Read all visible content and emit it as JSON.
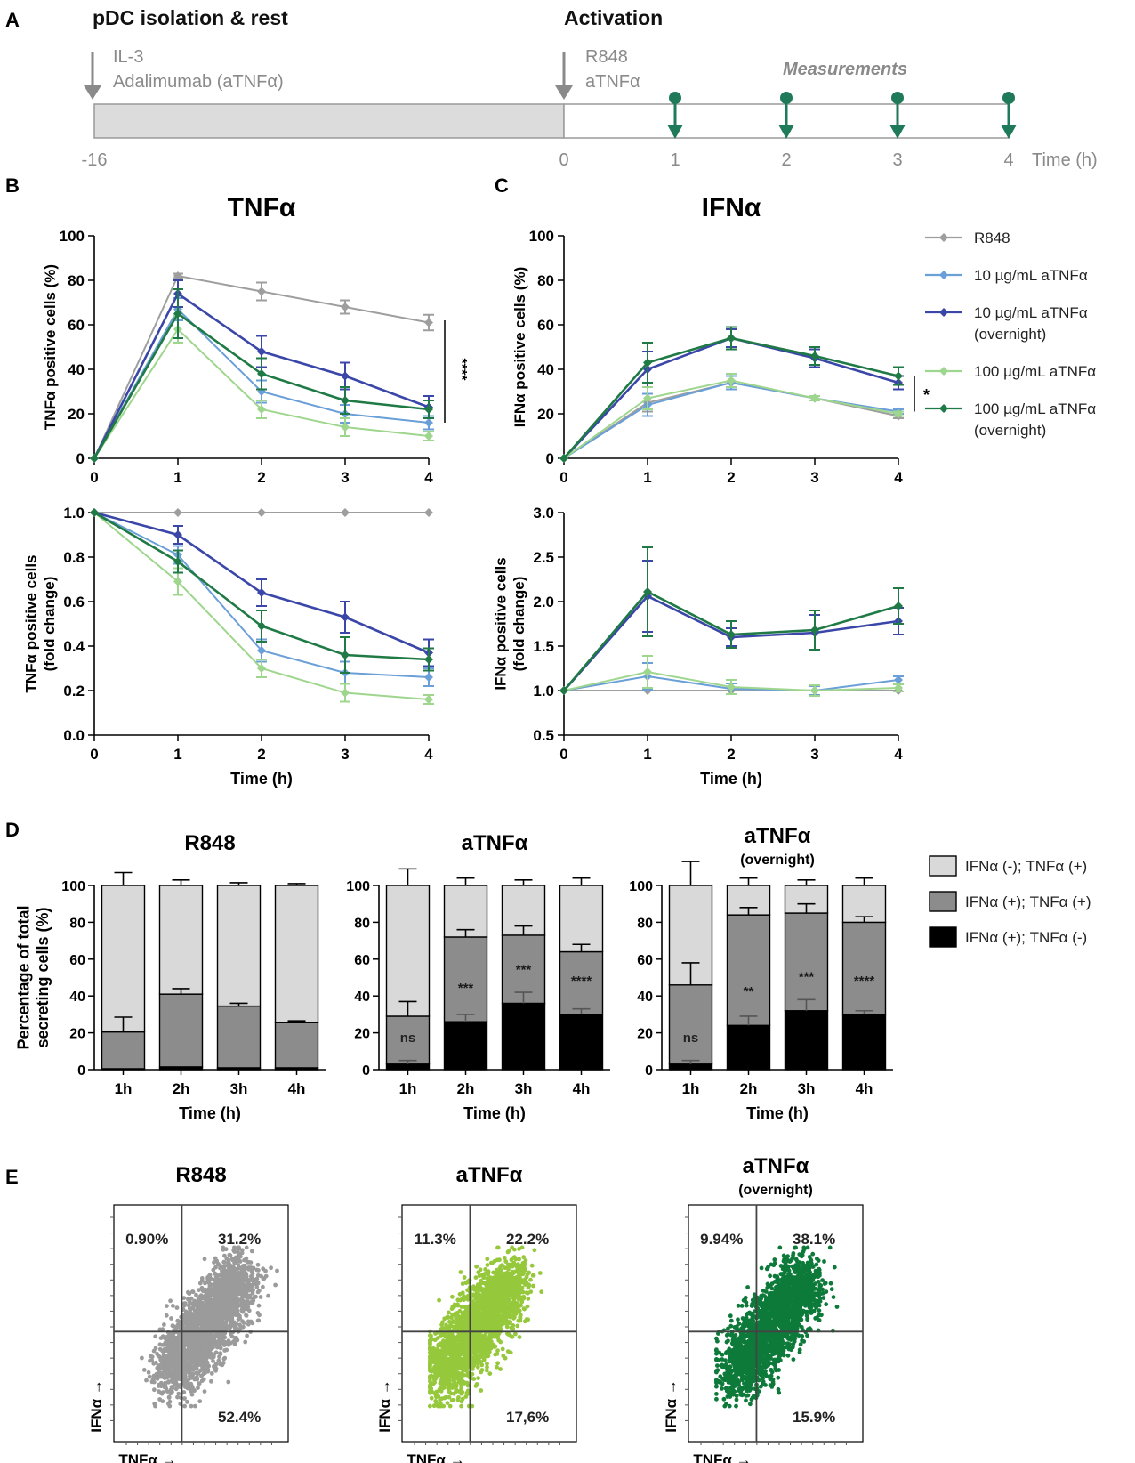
{
  "panel_letters": {
    "A": "A",
    "B": "B",
    "C": "C",
    "D": "D",
    "E": "E"
  },
  "colors": {
    "r848": "#9e9e9e",
    "a10": "#6a9fd8",
    "a10_on": "#3b47a8",
    "a100": "#9fd68e",
    "a100_on": "#1f7a45",
    "timeline_gray": "#8a8a8a",
    "arrow_green": "#1f7a5a",
    "bar_light": "#d9d9d9",
    "bar_mid": "#8c8c8c",
    "bar_dark": "#000000",
    "scatter_gray": "#9b9b9b",
    "scatter_light_green": "#96c83c",
    "scatter_dark_green": "#0d7a3a"
  },
  "timeline": {
    "left_title": "pDC isolation & rest",
    "left_line1": "IL-3",
    "left_line2": "Adalimumab (aTNFα)",
    "right_title": "Activation",
    "right_line1": "R848",
    "right_line2": "aTNFα",
    "measurements_label": "Measurements",
    "ticks": [
      "-16",
      "0",
      "1",
      "2",
      "3",
      "4"
    ],
    "time_label": "Time (h)"
  },
  "legend_lines": {
    "items": [
      {
        "key": "r848",
        "line1": "R848",
        "line2": ""
      },
      {
        "key": "a10",
        "line1": "10 µg/mL aTNFα",
        "line2": ""
      },
      {
        "key": "a10_on",
        "line1": "10 µg/mL aTNFα",
        "line2": "(overnight)"
      },
      {
        "key": "a100",
        "line1": "100 µg/mL aTNFα",
        "line2": ""
      },
      {
        "key": "a100_on",
        "line1": "100 µg/mL aTNFα",
        "line2": "(overnight)"
      }
    ]
  },
  "legend_bars": {
    "items": [
      {
        "key": "bar_light",
        "label": "IFNα (-); TNFα (+)"
      },
      {
        "key": "bar_mid",
        "label": "IFNα (+); TNFα (+)"
      },
      {
        "key": "bar_dark",
        "label": "IFNα (+); TNFα (-)"
      }
    ]
  },
  "chart_data": [
    {
      "id": "B_top",
      "type": "line",
      "title": "TNFα",
      "xlabel": "",
      "ylabel": "TNFα positive cells (%)",
      "ylim": [
        0,
        100
      ],
      "yticks": [
        "0",
        "20",
        "40",
        "60",
        "80",
        "100"
      ],
      "x": [
        0,
        1,
        2,
        3,
        4
      ],
      "xticks": [
        "0",
        "1",
        "2",
        "3",
        "4"
      ],
      "series": [
        {
          "key": "r848",
          "name": "R848",
          "values": [
            0,
            82,
            75,
            68,
            61
          ],
          "err": [
            0,
            1,
            4,
            3,
            3.5
          ]
        },
        {
          "key": "a10",
          "name": "10 µg/mL aTNFα",
          "values": [
            0,
            67,
            30,
            20,
            16
          ],
          "err": [
            0,
            5,
            5,
            4,
            3
          ]
        },
        {
          "key": "a10_on",
          "name": "10 µg/mL aTNFα (overnight)",
          "values": [
            0,
            74,
            48,
            37,
            23
          ],
          "err": [
            0,
            6,
            7,
            6,
            5
          ]
        },
        {
          "key": "a100",
          "name": "100 µg/mL aTNFα",
          "values": [
            0,
            58,
            22,
            14,
            10
          ],
          "err": [
            0,
            6,
            4,
            4,
            2
          ]
        },
        {
          "key": "a100_on",
          "name": "100 µg/mL aTNFα (overnight)",
          "values": [
            0,
            65,
            38,
            26,
            22
          ],
          "err": [
            0,
            11,
            7,
            6,
            4
          ]
        }
      ],
      "annotation": "****"
    },
    {
      "id": "C_top",
      "type": "line",
      "title": "IFNα",
      "xlabel": "",
      "ylabel": "IFNα positive cells (%)",
      "ylim": [
        0,
        100
      ],
      "yticks": [
        "0",
        "20",
        "40",
        "60",
        "80",
        "100"
      ],
      "x": [
        0,
        1,
        2,
        3,
        4
      ],
      "xticks": [
        "0",
        "1",
        "2",
        "3",
        "4"
      ],
      "series": [
        {
          "key": "r848",
          "name": "R848",
          "values": [
            0,
            25,
            34,
            27,
            19
          ],
          "err": [
            0,
            4,
            3,
            1,
            1
          ]
        },
        {
          "key": "a10",
          "name": "10 µg/mL aTNFα",
          "values": [
            0,
            24,
            34,
            27,
            21
          ],
          "err": [
            0,
            5,
            3,
            1,
            1
          ]
        },
        {
          "key": "a10_on",
          "name": "10 µg/mL aTNFα (overnight)",
          "values": [
            0,
            40,
            54,
            45,
            34
          ],
          "err": [
            0,
            8,
            4,
            4,
            3
          ]
        },
        {
          "key": "a100",
          "name": "100 µg/mL aTNFα",
          "values": [
            0,
            27,
            35,
            27,
            20
          ],
          "err": [
            0,
            5,
            3,
            1,
            1
          ]
        },
        {
          "key": "a100_on",
          "name": "100 µg/mL aTNFα (overnight)",
          "values": [
            0,
            43,
            54,
            46,
            37
          ],
          "err": [
            0,
            9,
            5,
            4,
            4
          ]
        }
      ],
      "annotation": "*"
    },
    {
      "id": "B_bottom",
      "type": "line",
      "title": "",
      "xlabel": "Time (h)",
      "ylabel": "TNFα positive cells (fold change)",
      "ylim": [
        0,
        1.0
      ],
      "yticks": [
        "0.0",
        "0.2",
        "0.4",
        "0.6",
        "0.8",
        "1.0"
      ],
      "x": [
        0,
        1,
        2,
        3,
        4
      ],
      "xticks": [
        "0",
        "1",
        "2",
        "3",
        "4"
      ],
      "series": [
        {
          "key": "r848",
          "name": "R848",
          "values": [
            1,
            1,
            1,
            1,
            1
          ],
          "err": [
            0,
            0,
            0,
            0,
            0
          ]
        },
        {
          "key": "a10",
          "name": "10 µg/mL aTNFα",
          "values": [
            1,
            0.81,
            0.38,
            0.28,
            0.26
          ],
          "err": [
            0,
            0.04,
            0.05,
            0.05,
            0.04
          ]
        },
        {
          "key": "a10_on",
          "name": "10 µg/mL aTNFα (overnight)",
          "values": [
            1,
            0.9,
            0.64,
            0.53,
            0.37
          ],
          "err": [
            0,
            0.04,
            0.06,
            0.07,
            0.06
          ]
        },
        {
          "key": "a100",
          "name": "100 µg/mL aTNFα",
          "values": [
            1,
            0.69,
            0.3,
            0.19,
            0.16
          ],
          "err": [
            0,
            0.06,
            0.04,
            0.04,
            0.02
          ]
        },
        {
          "key": "a100_on",
          "name": "100 µg/mL aTNFα (overnight)",
          "values": [
            1,
            0.78,
            0.49,
            0.36,
            0.34
          ],
          "err": [
            0,
            0.05,
            0.07,
            0.08,
            0.05
          ]
        }
      ]
    },
    {
      "id": "C_bottom",
      "type": "line",
      "title": "",
      "xlabel": "Time (h)",
      "ylabel": "IFNα positive cells (fold change)",
      "ylim": [
        0.5,
        3.0
      ],
      "yticks": [
        "0.5",
        "1.0",
        "1.5",
        "2.0",
        "2.5",
        "3.0"
      ],
      "x": [
        0,
        1,
        2,
        3,
        4
      ],
      "xticks": [
        "0",
        "1",
        "2",
        "3",
        "4"
      ],
      "series": [
        {
          "key": "r848",
          "name": "R848",
          "values": [
            1,
            1,
            1,
            1,
            1
          ],
          "err": [
            0,
            0,
            0,
            0,
            0
          ]
        },
        {
          "key": "a10",
          "name": "10 µg/mL aTNFα",
          "values": [
            1,
            1.16,
            1.02,
            1.0,
            1.12
          ],
          "err": [
            0,
            0.15,
            0.06,
            0.05,
            0.04
          ]
        },
        {
          "key": "a10_on",
          "name": "10 µg/mL aTNFα (overnight)",
          "values": [
            1,
            2.06,
            1.6,
            1.65,
            1.78
          ],
          "err": [
            0,
            0.4,
            0.1,
            0.2,
            0.15
          ]
        },
        {
          "key": "a100",
          "name": "100 µg/mL aTNFα",
          "values": [
            1,
            1.21,
            1.04,
            1.0,
            1.03
          ],
          "err": [
            0,
            0.18,
            0.08,
            0.06,
            0.04
          ]
        },
        {
          "key": "a100_on",
          "name": "100 µg/mL aTNFα (overnight)",
          "values": [
            1,
            2.11,
            1.63,
            1.68,
            1.95
          ],
          "err": [
            0,
            0.5,
            0.15,
            0.22,
            0.2
          ]
        }
      ]
    },
    {
      "id": "D1",
      "type": "bar",
      "title": "R848",
      "subtitle": "",
      "categories": [
        "1h",
        "2h",
        "3h",
        "4h"
      ],
      "xlabel": "Time (h)",
      "ylabel": "Percentage of total secreting cells (%)",
      "ylim": [
        0,
        100
      ],
      "yticks": [
        "0",
        "20",
        "40",
        "60",
        "80",
        "100"
      ],
      "series": [
        {
          "key": "bar_dark",
          "name": "IFNα (+); TNFα (-)",
          "values": [
            0.5,
            1.5,
            1,
            1
          ]
        },
        {
          "key": "bar_mid",
          "name": "IFNα (+); TNFα (+)",
          "values": [
            20,
            39.5,
            33.5,
            24.5
          ]
        },
        {
          "key": "bar_light",
          "name": "IFNα (-); TNFα (+)",
          "values": [
            79.5,
            59,
            65.5,
            74.5
          ]
        }
      ],
      "errors": {
        "mid_top": [
          8,
          3,
          1.5,
          1
        ],
        "total": [
          7,
          3,
          1.5,
          1
        ]
      },
      "significance": [
        "",
        "",
        "",
        ""
      ]
    },
    {
      "id": "D2",
      "type": "bar",
      "title": "aTNFα",
      "subtitle": "",
      "categories": [
        "1h",
        "2h",
        "3h",
        "4h"
      ],
      "xlabel": "Time (h)",
      "ylabel": "",
      "ylim": [
        0,
        100
      ],
      "yticks": [
        "0",
        "20",
        "40",
        "60",
        "80",
        "100"
      ],
      "series": [
        {
          "key": "bar_dark",
          "name": "IFNα (+); TNFα (-)",
          "values": [
            3,
            26,
            36,
            30
          ]
        },
        {
          "key": "bar_mid",
          "name": "IFNα (+); TNFα (+)",
          "values": [
            26,
            46,
            37,
            34
          ]
        },
        {
          "key": "bar_light",
          "name": "IFNα (-); TNFα (+)",
          "values": [
            71,
            28,
            27,
            36
          ]
        }
      ],
      "errors": {
        "mid_top": [
          8,
          4,
          5,
          4
        ],
        "total": [
          9,
          4,
          3,
          4
        ],
        "dark_top": [
          2,
          4,
          6,
          3
        ]
      },
      "significance": [
        "ns",
        "***",
        "***",
        "****"
      ]
    },
    {
      "id": "D3",
      "type": "bar",
      "title": "aTNFα",
      "subtitle": "(overnight)",
      "categories": [
        "1h",
        "2h",
        "3h",
        "4h"
      ],
      "xlabel": "Time (h)",
      "ylabel": "",
      "ylim": [
        0,
        100
      ],
      "yticks": [
        "0",
        "20",
        "40",
        "60",
        "80",
        "100"
      ],
      "series": [
        {
          "key": "bar_dark",
          "name": "IFNα (+); TNFα (-)",
          "values": [
            3,
            24,
            32,
            30
          ]
        },
        {
          "key": "bar_mid",
          "name": "IFNα (+); TNFα (+)",
          "values": [
            43,
            60,
            53,
            50
          ]
        },
        {
          "key": "bar_light",
          "name": "IFNα (-); TNFα (+)",
          "values": [
            54,
            16,
            15,
            20
          ]
        }
      ],
      "errors": {
        "mid_top": [
          12,
          4,
          5,
          3
        ],
        "total": [
          13,
          4,
          3,
          4
        ],
        "dark_top": [
          2,
          5,
          6,
          2
        ]
      },
      "significance": [
        "ns",
        "**",
        "***",
        "****"
      ]
    },
    {
      "id": "E1",
      "type": "scatter",
      "title": "R848",
      "subtitle": "",
      "xlabel": "TNFα →",
      "ylabel": "IFNα →",
      "color_key": "scatter_gray",
      "quadrants": {
        "top_left": "0.90%",
        "top_right": "31.2%",
        "bottom_right": "52.4%"
      }
    },
    {
      "id": "E2",
      "type": "scatter",
      "title": "aTNFα",
      "subtitle": "",
      "xlabel": "TNFα →",
      "ylabel": "IFNα →",
      "color_key": "scatter_light_green",
      "quadrants": {
        "top_left": "11.3%",
        "top_right": "22.2%",
        "bottom_right": "17,6%"
      }
    },
    {
      "id": "E3",
      "type": "scatter",
      "title": "aTNFα",
      "subtitle": "(overnight)",
      "xlabel": "TNFα →",
      "ylabel": "IFNα →",
      "color_key": "scatter_dark_green",
      "quadrants": {
        "top_left": "9.94%",
        "top_right": "38.1%",
        "bottom_right": "15.9%"
      }
    }
  ]
}
